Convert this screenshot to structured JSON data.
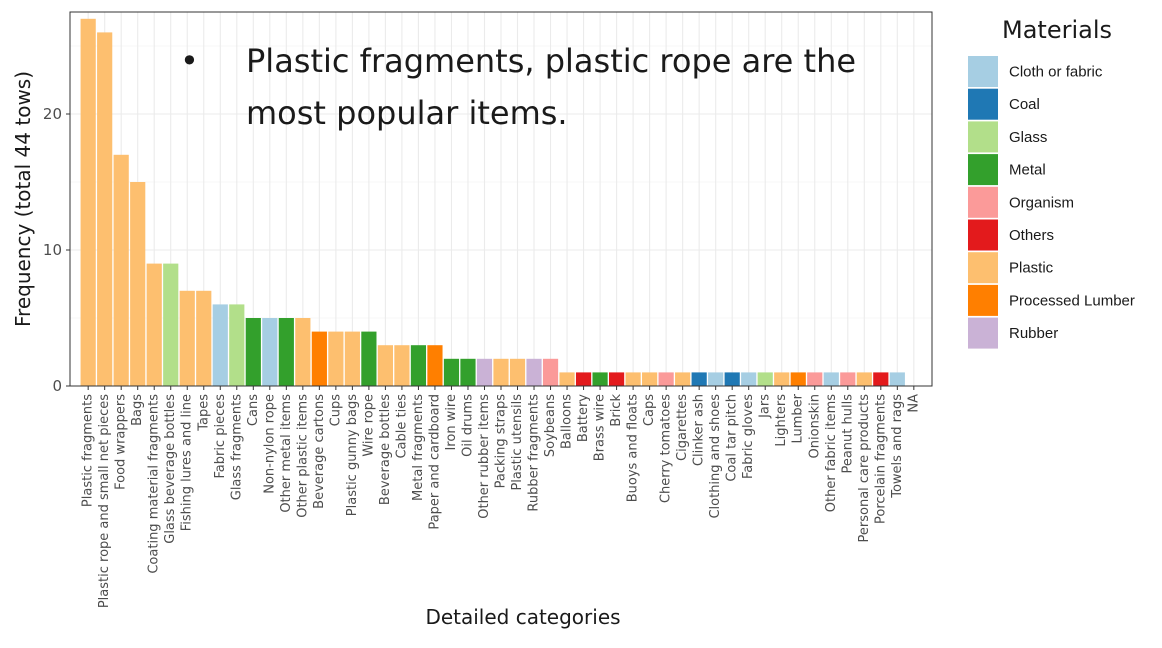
{
  "chart_data": {
    "type": "bar",
    "title": "",
    "xlabel": "Detailed categories",
    "ylabel": "Frequency (total 44 tows)",
    "ylim": [
      0,
      27.5
    ],
    "yticks": [
      0,
      10,
      20
    ],
    "grid": true,
    "legend_placement": "right",
    "legend_title": "Materials",
    "legend": [
      {
        "name": "Cloth or fabric",
        "color": "#a6cee3"
      },
      {
        "name": "Coal",
        "color": "#1f78b4"
      },
      {
        "name": "Glass",
        "color": "#b2df8a"
      },
      {
        "name": "Metal",
        "color": "#33a02c"
      },
      {
        "name": "Organism",
        "color": "#fb9a99"
      },
      {
        "name": "Others",
        "color": "#e31a1c"
      },
      {
        "name": "Plastic",
        "color": "#fdbf6f"
      },
      {
        "name": "Processed Lumber",
        "color": "#ff7f00"
      },
      {
        "name": "Rubber",
        "color": "#cab2d6"
      }
    ],
    "bars": [
      {
        "category": "Plastic fragments",
        "value": 27,
        "material": "Plastic"
      },
      {
        "category": "Plastic rope and small net pieces",
        "value": 26,
        "material": "Plastic"
      },
      {
        "category": "Food wrappers",
        "value": 17,
        "material": "Plastic"
      },
      {
        "category": "Bags",
        "value": 15,
        "material": "Plastic"
      },
      {
        "category": "Coating material fragments",
        "value": 9,
        "material": "Plastic"
      },
      {
        "category": "Glass beverage bottles",
        "value": 9,
        "material": "Glass"
      },
      {
        "category": "Fishing lures and line",
        "value": 7,
        "material": "Plastic"
      },
      {
        "category": "Tapes",
        "value": 7,
        "material": "Plastic"
      },
      {
        "category": "Fabric pieces",
        "value": 6,
        "material": "Cloth or fabric"
      },
      {
        "category": "Glass fragments",
        "value": 6,
        "material": "Glass"
      },
      {
        "category": "Cans",
        "value": 5,
        "material": "Metal"
      },
      {
        "category": "Non-nylon rope",
        "value": 5,
        "material": "Cloth or fabric"
      },
      {
        "category": "Other metal items",
        "value": 5,
        "material": "Metal"
      },
      {
        "category": "Other plastic items",
        "value": 5,
        "material": "Plastic"
      },
      {
        "category": "Beverage cartons",
        "value": 4,
        "material": "Processed Lumber"
      },
      {
        "category": "Cups",
        "value": 4,
        "material": "Plastic"
      },
      {
        "category": "Plastic gunny bags",
        "value": 4,
        "material": "Plastic"
      },
      {
        "category": "Wire rope",
        "value": 4,
        "material": "Metal"
      },
      {
        "category": "Beverage bottles",
        "value": 3,
        "material": "Plastic"
      },
      {
        "category": "Cable ties",
        "value": 3,
        "material": "Plastic"
      },
      {
        "category": "Metal fragments",
        "value": 3,
        "material": "Metal"
      },
      {
        "category": "Paper and cardboard",
        "value": 3,
        "material": "Processed Lumber"
      },
      {
        "category": "Iron wire",
        "value": 2,
        "material": "Metal"
      },
      {
        "category": "Oil drums",
        "value": 2,
        "material": "Metal"
      },
      {
        "category": "Other rubber items",
        "value": 2,
        "material": "Rubber"
      },
      {
        "category": "Packing straps",
        "value": 2,
        "material": "Plastic"
      },
      {
        "category": "Plastic utensils",
        "value": 2,
        "material": "Plastic"
      },
      {
        "category": "Rubber fragments",
        "value": 2,
        "material": "Rubber"
      },
      {
        "category": "Soybeans",
        "value": 2,
        "material": "Organism"
      },
      {
        "category": "Balloons",
        "value": 1,
        "material": "Plastic"
      },
      {
        "category": "Battery",
        "value": 1,
        "material": "Others"
      },
      {
        "category": "Brass wire",
        "value": 1,
        "material": "Metal"
      },
      {
        "category": "Brick",
        "value": 1,
        "material": "Others"
      },
      {
        "category": "Buoys and floats",
        "value": 1,
        "material": "Plastic"
      },
      {
        "category": "Caps",
        "value": 1,
        "material": "Plastic"
      },
      {
        "category": "Cherry tomatoes",
        "value": 1,
        "material": "Organism"
      },
      {
        "category": "Cigarettes",
        "value": 1,
        "material": "Plastic"
      },
      {
        "category": "Clinker ash",
        "value": 1,
        "material": "Coal"
      },
      {
        "category": "Clothing and shoes",
        "value": 1,
        "material": "Cloth or fabric"
      },
      {
        "category": "Coal tar pitch",
        "value": 1,
        "material": "Coal"
      },
      {
        "category": "Fabric gloves",
        "value": 1,
        "material": "Cloth or fabric"
      },
      {
        "category": "Jars",
        "value": 1,
        "material": "Glass"
      },
      {
        "category": "Lighters",
        "value": 1,
        "material": "Plastic"
      },
      {
        "category": "Lumber",
        "value": 1,
        "material": "Processed Lumber"
      },
      {
        "category": "Onionskin",
        "value": 1,
        "material": "Organism"
      },
      {
        "category": "Other fabric items",
        "value": 1,
        "material": "Cloth or fabric"
      },
      {
        "category": "Peanut hulls",
        "value": 1,
        "material": "Organism"
      },
      {
        "category": "Personal care products",
        "value": 1,
        "material": "Plastic"
      },
      {
        "category": "Porcelain fragments",
        "value": 1,
        "material": "Others"
      },
      {
        "category": "Towels and rags",
        "value": 1,
        "material": "Cloth or fabric"
      },
      {
        "category": "NA",
        "value": 0,
        "material": ""
      }
    ],
    "annotation": {
      "bullet": "•",
      "lines": [
        "Plastic fragments, plastic rope are the",
        "most popular items."
      ]
    }
  }
}
